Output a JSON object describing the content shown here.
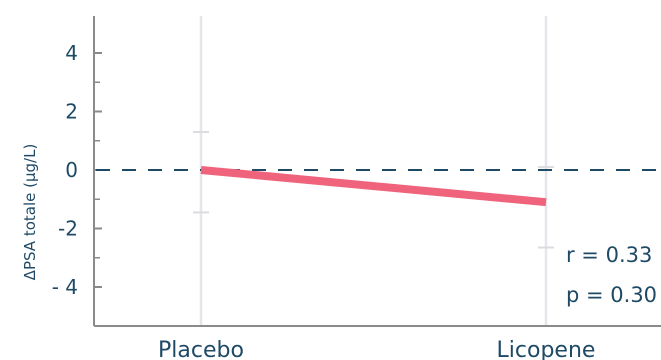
{
  "chart_data": {
    "type": "line",
    "categories": [
      "Placebo",
      "Licopene"
    ],
    "values": [
      0.0,
      -1.1
    ],
    "error_bars": [
      {
        "upper": 1.3,
        "lower": -1.45
      },
      {
        "upper": 0.1,
        "lower": -2.65
      }
    ],
    "ylabel": "ΔPSA totale (µg/L)",
    "ylim": [
      -5.4,
      5.3
    ],
    "yticks": [
      {
        "value": 4,
        "label": "4"
      },
      {
        "value": 2,
        "label": "2"
      },
      {
        "value": 0,
        "label": "0"
      },
      {
        "value": -2,
        "label": "-2"
      },
      {
        "value": -4,
        "label": "- 4"
      }
    ],
    "minor_ticks": [
      3,
      1,
      -1,
      -3
    ],
    "reference_line": 0,
    "annotations": [
      "r = 0.33",
      "p = 0.30"
    ],
    "colors": {
      "line": "#ef647c",
      "axis": "#8a8a8a",
      "vline": "#e6e6ea",
      "dashed": "#1f4a66",
      "text": "#1f4a66"
    }
  }
}
